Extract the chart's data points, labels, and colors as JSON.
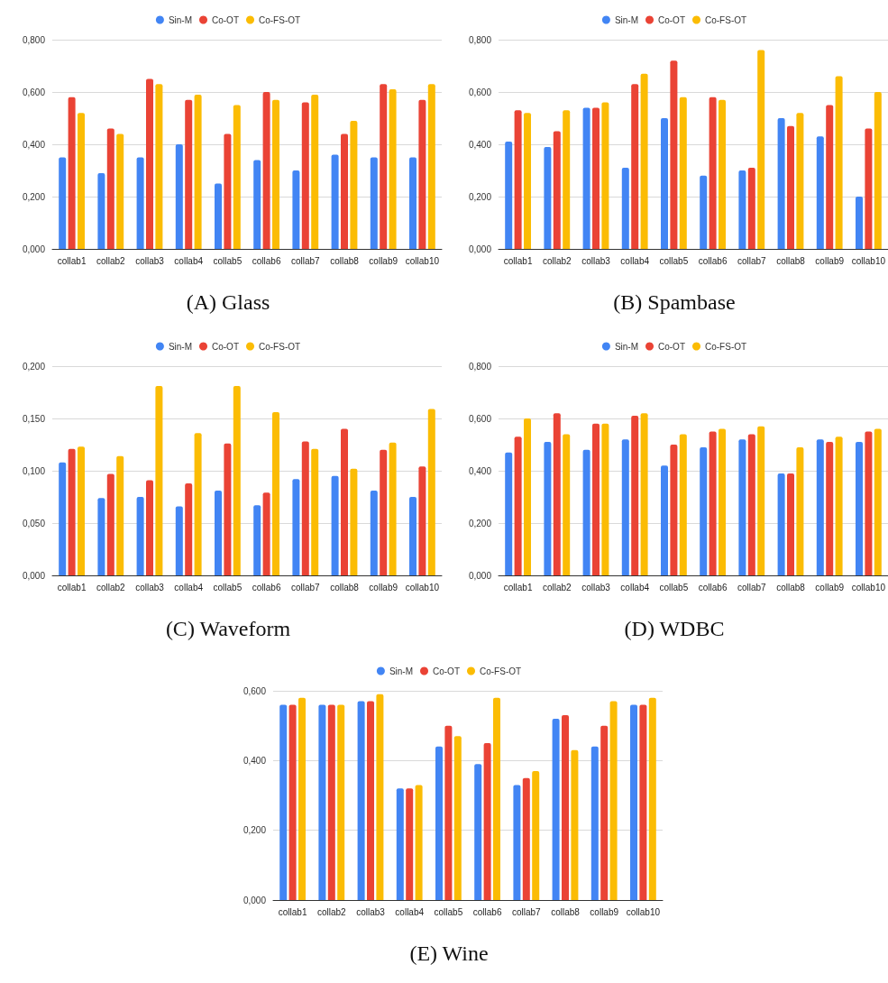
{
  "chart_data": [
    {
      "type": "bar",
      "title": "(A) Glass",
      "categories": [
        "collab1",
        "collab2",
        "collab3",
        "collab4",
        "collab5",
        "collab6",
        "collab7",
        "collab8",
        "collab9",
        "collab10"
      ],
      "series": [
        {
          "name": "Sin-M",
          "color": "#4285f4",
          "values": [
            0.35,
            0.29,
            0.35,
            0.4,
            0.25,
            0.34,
            0.3,
            0.36,
            0.35,
            0.35
          ]
        },
        {
          "name": "Co-OT",
          "color": "#ea4335",
          "values": [
            0.58,
            0.46,
            0.65,
            0.57,
            0.44,
            0.6,
            0.56,
            0.44,
            0.63,
            0.57
          ]
        },
        {
          "name": "Co-FS-OT",
          "color": "#fbbc04",
          "values": [
            0.52,
            0.44,
            0.63,
            0.59,
            0.55,
            0.57,
            0.59,
            0.49,
            0.61,
            0.63
          ]
        }
      ],
      "ylim": [
        0,
        0.8
      ],
      "yticks": [
        {
          "value": 0,
          "label": "0,000"
        },
        {
          "value": 0.2,
          "label": "0,200"
        },
        {
          "value": 0.4,
          "label": "0,400"
        },
        {
          "value": 0.6,
          "label": "0,600"
        },
        {
          "value": 0.8,
          "label": "0,800"
        }
      ],
      "grid": "y",
      "legend": "top"
    },
    {
      "type": "bar",
      "title": "(B) Spambase",
      "categories": [
        "collab1",
        "collab2",
        "collab3",
        "collab4",
        "collab5",
        "collab6",
        "collab7",
        "collab8",
        "collab9",
        "collab10"
      ],
      "series": [
        {
          "name": "Sin-M",
          "color": "#4285f4",
          "values": [
            0.41,
            0.39,
            0.54,
            0.31,
            0.5,
            0.28,
            0.3,
            0.5,
            0.43,
            0.2
          ]
        },
        {
          "name": "Co-OT",
          "color": "#ea4335",
          "values": [
            0.53,
            0.45,
            0.54,
            0.63,
            0.72,
            0.58,
            0.31,
            0.47,
            0.55,
            0.46
          ]
        },
        {
          "name": "Co-FS-OT",
          "color": "#fbbc04",
          "values": [
            0.52,
            0.53,
            0.56,
            0.67,
            0.58,
            0.57,
            0.76,
            0.52,
            0.66,
            0.6
          ]
        }
      ],
      "ylim": [
        0,
        0.8
      ],
      "yticks": [
        {
          "value": 0,
          "label": "0,000"
        },
        {
          "value": 0.2,
          "label": "0,200"
        },
        {
          "value": 0.4,
          "label": "0,400"
        },
        {
          "value": 0.6,
          "label": "0,600"
        },
        {
          "value": 0.8,
          "label": "0,800"
        }
      ],
      "grid": "y",
      "legend": "top"
    },
    {
      "type": "bar",
      "title": "(C) Waveform",
      "categories": [
        "collab1",
        "collab2",
        "collab3",
        "collab4",
        "collab5",
        "collab6",
        "collab7",
        "collab8",
        "collab9",
        "collab10"
      ],
      "series": [
        {
          "name": "Sin-M",
          "color": "#4285f4",
          "values": [
            0.108,
            0.074,
            0.075,
            0.066,
            0.081,
            0.067,
            0.092,
            0.095,
            0.081,
            0.075
          ]
        },
        {
          "name": "Co-OT",
          "color": "#ea4335",
          "values": [
            0.121,
            0.097,
            0.091,
            0.088,
            0.126,
            0.079,
            0.128,
            0.14,
            0.12,
            0.104
          ]
        },
        {
          "name": "Co-FS-OT",
          "color": "#fbbc04",
          "values": [
            0.123,
            0.114,
            0.181,
            0.136,
            0.181,
            0.156,
            0.121,
            0.102,
            0.127,
            0.159
          ]
        }
      ],
      "ylim": [
        0,
        0.2
      ],
      "yticks": [
        {
          "value": 0,
          "label": "0,000"
        },
        {
          "value": 0.05,
          "label": "0,050"
        },
        {
          "value": 0.1,
          "label": "0,100"
        },
        {
          "value": 0.15,
          "label": "0,150"
        },
        {
          "value": 0.2,
          "label": "0,200"
        }
      ],
      "grid": "y",
      "legend": "top"
    },
    {
      "type": "bar",
      "title": "(D) WDBC",
      "categories": [
        "collab1",
        "collab2",
        "collab3",
        "collab4",
        "collab5",
        "collab6",
        "collab7",
        "collab8",
        "collab9",
        "collab10"
      ],
      "series": [
        {
          "name": "Sin-M",
          "color": "#4285f4",
          "values": [
            0.47,
            0.51,
            0.48,
            0.52,
            0.42,
            0.49,
            0.52,
            0.39,
            0.52,
            0.51
          ]
        },
        {
          "name": "Co-OT",
          "color": "#ea4335",
          "values": [
            0.53,
            0.62,
            0.58,
            0.61,
            0.5,
            0.55,
            0.54,
            0.39,
            0.51,
            0.55
          ]
        },
        {
          "name": "Co-FS-OT",
          "color": "#fbbc04",
          "values": [
            0.6,
            0.54,
            0.58,
            0.62,
            0.54,
            0.56,
            0.57,
            0.49,
            0.53,
            0.56
          ]
        }
      ],
      "ylim": [
        0,
        0.8
      ],
      "yticks": [
        {
          "value": 0,
          "label": "0,000"
        },
        {
          "value": 0.2,
          "label": "0,200"
        },
        {
          "value": 0.4,
          "label": "0,400"
        },
        {
          "value": 0.6,
          "label": "0,600"
        },
        {
          "value": 0.8,
          "label": "0,800"
        }
      ],
      "grid": "y",
      "legend": "top"
    },
    {
      "type": "bar",
      "title": "(E) Wine",
      "categories": [
        "collab1",
        "collab2",
        "collab3",
        "collab4",
        "collab5",
        "collab6",
        "collab7",
        "collab8",
        "collab9",
        "collab10"
      ],
      "series": [
        {
          "name": "Sin-M",
          "color": "#4285f4",
          "values": [
            0.56,
            0.56,
            0.57,
            0.32,
            0.44,
            0.39,
            0.33,
            0.52,
            0.44,
            0.56
          ]
        },
        {
          "name": "Co-OT",
          "color": "#ea4335",
          "values": [
            0.56,
            0.56,
            0.57,
            0.32,
            0.5,
            0.45,
            0.35,
            0.53,
            0.5,
            0.56
          ]
        },
        {
          "name": "Co-FS-OT",
          "color": "#fbbc04",
          "values": [
            0.58,
            0.56,
            0.59,
            0.33,
            0.47,
            0.58,
            0.37,
            0.43,
            0.57,
            0.58
          ]
        }
      ],
      "ylim": [
        0,
        0.6
      ],
      "yticks": [
        {
          "value": 0,
          "label": "0,000"
        },
        {
          "value": 0.2,
          "label": "0,200"
        },
        {
          "value": 0.4,
          "label": "0,400"
        },
        {
          "value": 0.6,
          "label": "0,600"
        }
      ],
      "grid": "y",
      "legend": "top"
    }
  ]
}
